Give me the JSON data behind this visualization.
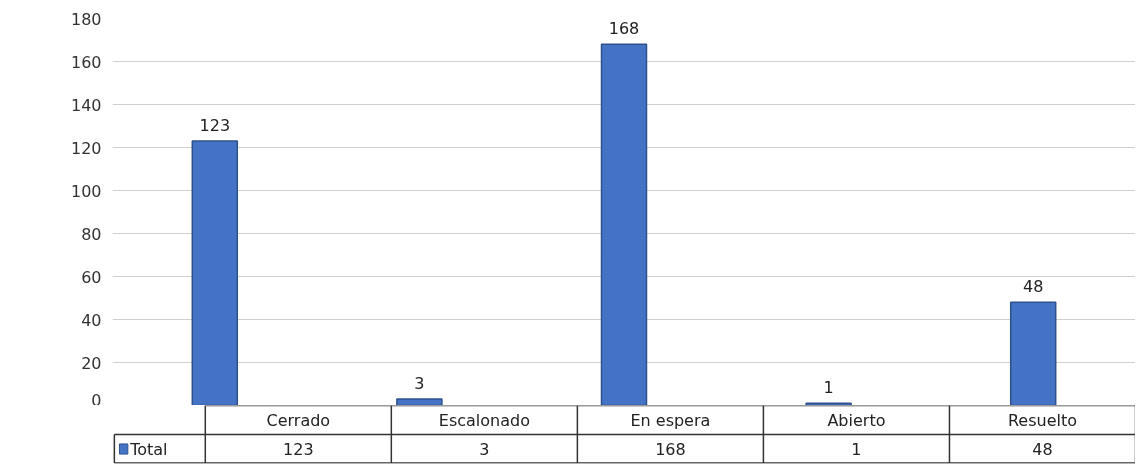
{
  "chart_data": {
    "type": "bar",
    "categories": [
      "Cerrado",
      "Escalonado",
      "En espera",
      "Abierto",
      "Resuelto"
    ],
    "series": [
      {
        "name": "Total",
        "color": "#4472c4",
        "values": [
          123,
          3,
          168,
          1,
          48
        ],
        "value_labels": [
          "123",
          "3",
          "168",
          "1",
          "48"
        ]
      }
    ],
    "ylim": [
      0,
      180
    ],
    "yticks": [
      0,
      20,
      40,
      60,
      80,
      100,
      120,
      140,
      160,
      180
    ],
    "grid": "y",
    "legend": "bottom",
    "annotations": [
      "123",
      "3",
      "168",
      "1",
      "48"
    ]
  }
}
